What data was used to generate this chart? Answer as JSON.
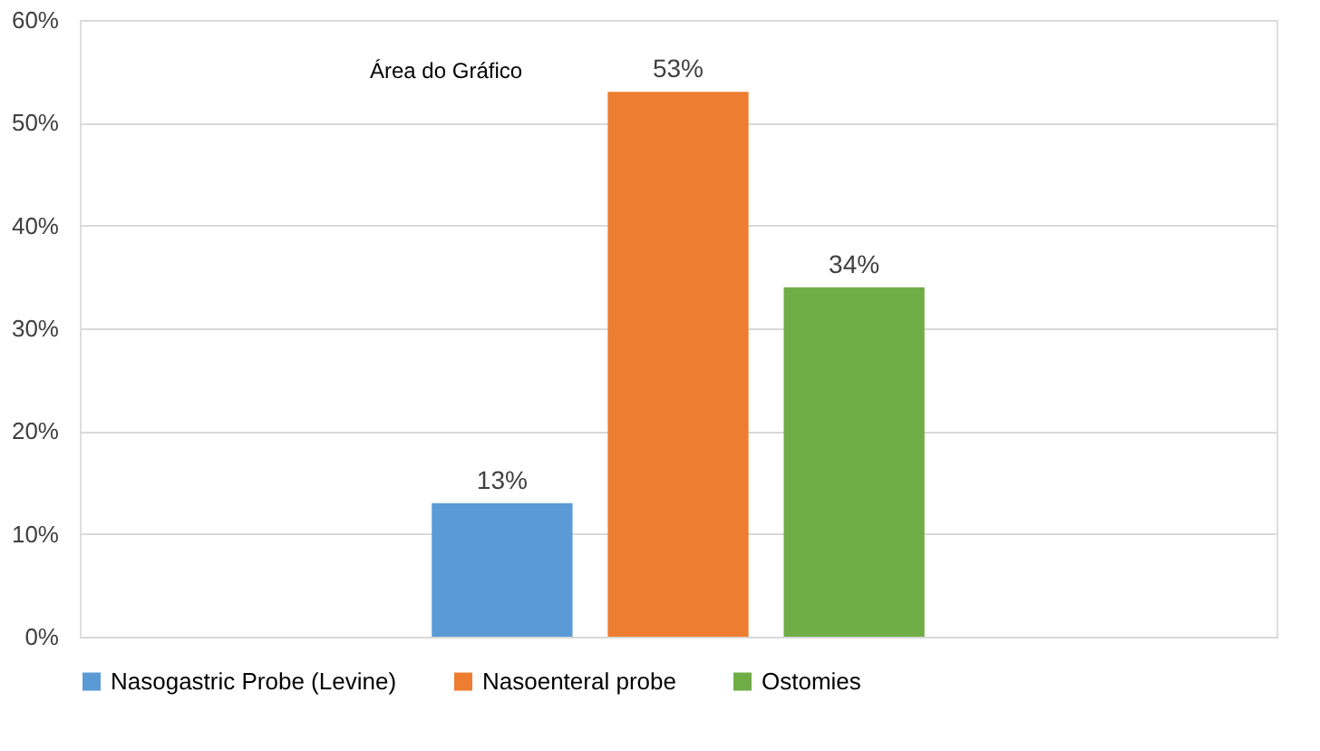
{
  "chart_data": {
    "type": "bar",
    "categories": [
      null
    ],
    "series": [
      {
        "name": "Nasogastric Probe (Levine)",
        "color": "#5b9bd5",
        "values": [
          13
        ]
      },
      {
        "name": "Nasoenteral probe",
        "color": "#ed7d31",
        "values": [
          53
        ]
      },
      {
        "name": "Ostomies",
        "color": "#70ad47",
        "values": [
          34
        ]
      }
    ],
    "value_labels": [
      "13%",
      "53%",
      "34%"
    ],
    "ylim": [
      0,
      60
    ],
    "yticks": [
      {
        "value": 0,
        "label": "0%"
      },
      {
        "value": 10,
        "label": "10%"
      },
      {
        "value": 20,
        "label": "20%"
      },
      {
        "value": 30,
        "label": "30%"
      },
      {
        "value": 40,
        "label": "40%"
      },
      {
        "value": 50,
        "label": "50%"
      },
      {
        "value": 60,
        "label": "60%"
      }
    ],
    "grid": "y",
    "legend": "bottom",
    "annotations": [
      "Área do Gráfico"
    ]
  }
}
